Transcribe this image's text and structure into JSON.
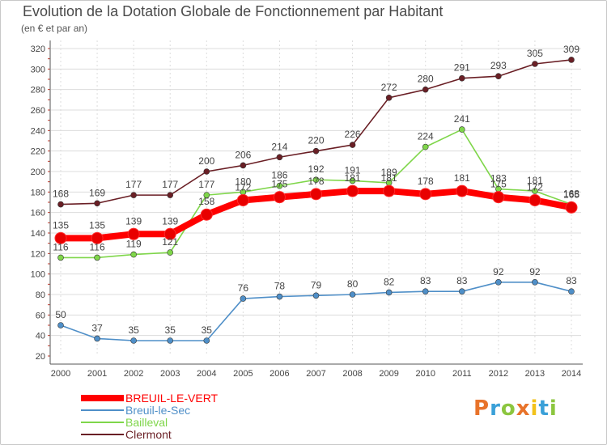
{
  "title": "Evolution de la Dotation Globale de Fonctionnement par Habitant",
  "subtitle": "(en € et par an)",
  "logo": {
    "text": "Proxiti"
  },
  "colors": {
    "grid": "#dcdcdc",
    "axis": "#555555",
    "label": "#444444"
  },
  "chart_data": {
    "type": "line",
    "title": "Evolution de la Dotation Globale de Fonctionnement par Habitant",
    "subtitle": "(en € et par an)",
    "xlabel": "",
    "ylabel": "",
    "x": [
      2000,
      2001,
      2002,
      2003,
      2004,
      2005,
      2006,
      2007,
      2008,
      2009,
      2010,
      2011,
      2012,
      2013,
      2014
    ],
    "ylim": [
      20,
      320
    ],
    "yticks": [
      20,
      40,
      60,
      80,
      100,
      120,
      140,
      160,
      180,
      200,
      220,
      240,
      260,
      280,
      300,
      320
    ],
    "grid": true,
    "legend": "bottom-left",
    "series": [
      {
        "name": "BREUIL-LE-VERT",
        "color": "#ff0000",
        "marker": "#e80000",
        "emphasis": true,
        "values": [
          135,
          135,
          139,
          139,
          158,
          172,
          175,
          178,
          181,
          181,
          178,
          181,
          175,
          172,
          165
        ]
      },
      {
        "name": "Breuil-le-Sec",
        "color": "#4f8fc8",
        "marker": "#4f8fc8",
        "emphasis": false,
        "values": [
          50,
          37,
          35,
          35,
          35,
          76,
          78,
          79,
          80,
          82,
          83,
          83,
          92,
          92,
          83
        ]
      },
      {
        "name": "Bailleval",
        "color": "#7fd64a",
        "marker": "#7fd64a",
        "emphasis": false,
        "values": [
          116,
          116,
          119,
          121,
          177,
          180,
          186,
          192,
          191,
          189,
          224,
          241,
          183,
          181,
          168
        ]
      },
      {
        "name": "Clermont",
        "color": "#6a1f25",
        "marker": "#6a1f25",
        "emphasis": false,
        "values": [
          168,
          169,
          177,
          177,
          200,
          206,
          214,
          220,
          226,
          272,
          280,
          291,
          293,
          305,
          309
        ]
      }
    ]
  }
}
